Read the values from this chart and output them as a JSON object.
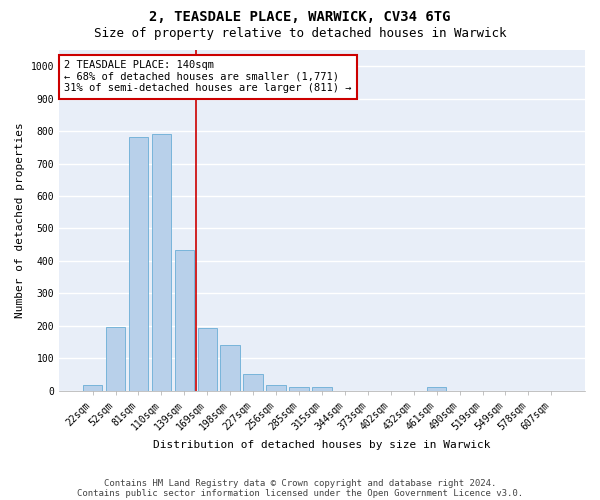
{
  "title1": "2, TEASDALE PLACE, WARWICK, CV34 6TG",
  "title2": "Size of property relative to detached houses in Warwick",
  "xlabel": "Distribution of detached houses by size in Warwick",
  "ylabel": "Number of detached properties",
  "categories": [
    "22sqm",
    "52sqm",
    "81sqm",
    "110sqm",
    "139sqm",
    "169sqm",
    "198sqm",
    "227sqm",
    "256sqm",
    "285sqm",
    "315sqm",
    "344sqm",
    "373sqm",
    "402sqm",
    "432sqm",
    "461sqm",
    "490sqm",
    "519sqm",
    "549sqm",
    "578sqm",
    "607sqm"
  ],
  "values": [
    18,
    197,
    782,
    790,
    435,
    192,
    142,
    50,
    18,
    12,
    12,
    0,
    0,
    0,
    0,
    12,
    0,
    0,
    0,
    0,
    0
  ],
  "bar_color": "#b8d0ea",
  "bar_edge_color": "#6aaed6",
  "highlight_line_color": "#cc0000",
  "annotation_line1": "2 TEASDALE PLACE: 140sqm",
  "annotation_line2": "← 68% of detached houses are smaller (1,771)",
  "annotation_line3": "31% of semi-detached houses are larger (811) →",
  "annotation_box_color": "#ffffff",
  "annotation_box_edge_color": "#cc0000",
  "ylim": [
    0,
    1050
  ],
  "yticks": [
    0,
    100,
    200,
    300,
    400,
    500,
    600,
    700,
    800,
    900,
    1000
  ],
  "footnote_line1": "Contains HM Land Registry data © Crown copyright and database right 2024.",
  "footnote_line2": "Contains public sector information licensed under the Open Government Licence v3.0.",
  "fig_bg_color": "#ffffff",
  "plot_bg_color": "#e8eef8",
  "grid_color": "#ffffff",
  "title1_fontsize": 10,
  "title2_fontsize": 9,
  "tick_fontsize": 7,
  "ylabel_fontsize": 8,
  "xlabel_fontsize": 8,
  "annotation_fontsize": 7.5,
  "footnote_fontsize": 6.5
}
